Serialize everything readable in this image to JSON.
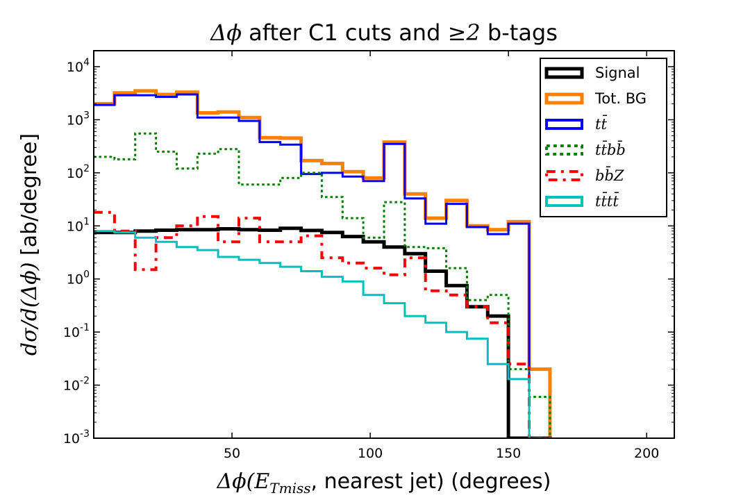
{
  "chart_data": {
    "type": "histogram-step",
    "title_prefix": "Δ",
    "title_var": "ϕ",
    "title_mid": " after C1 cuts and ",
    "title_math": "≥2",
    "title_suffix": " b-tags",
    "xlabel_prefix": "Δ",
    "xlabel_var": "ϕ(",
    "xlabel_e": "E",
    "xlabel_sub": "Tmiss",
    "xlabel_suffix": ", nearest jet) (degrees)",
    "ylabel_math": "dσ/d(Δϕ)",
    "ylabel_unit": " [ab/degree]",
    "xlim": [
      0,
      210
    ],
    "ylim": [
      0.001,
      20000
    ],
    "yscale": "log",
    "x_ticks": [
      50,
      100,
      150,
      200
    ],
    "x_tick_labels": [
      "50",
      "100",
      "150",
      "200"
    ],
    "y_ticks": [
      0.001,
      0.01,
      0.1,
      1,
      10,
      100,
      1000,
      10000
    ],
    "y_tick_labels": [
      {
        "base": "10",
        "exp": "-3"
      },
      {
        "base": "10",
        "exp": "-2"
      },
      {
        "base": "10",
        "exp": "-1"
      },
      {
        "base": "10",
        "exp": "0"
      },
      {
        "base": "10",
        "exp": "1"
      },
      {
        "base": "10",
        "exp": "2"
      },
      {
        "base": "10",
        "exp": "3"
      },
      {
        "base": "10",
        "exp": "4"
      }
    ],
    "bin_width": 7.5,
    "bin_start": 0,
    "series": [
      {
        "name": "Tot. BG",
        "color": "#ff8000",
        "style": "solid",
        "width": 5,
        "values": [
          2000,
          3200,
          3500,
          3000,
          3300,
          1350,
          1400,
          1100,
          460,
          450,
          170,
          150,
          105,
          80,
          380,
          40,
          14,
          30,
          10,
          8.5,
          12,
          0.02
        ]
      },
      {
        "name": "Signal",
        "color": "#000000",
        "style": "solid",
        "width": 5,
        "values": [
          7.5,
          7.5,
          8,
          8.3,
          8.5,
          8.5,
          8.8,
          8.5,
          8.3,
          9,
          8.2,
          7.5,
          6.3,
          5,
          4,
          3,
          1.4,
          0.75,
          0.3,
          0.2,
          0.001,
          0.001
        ]
      },
      {
        "name": "tt̄",
        "color": "#0000ff",
        "style": "solid",
        "width": 3,
        "values": [
          1900,
          2900,
          2900,
          2700,
          3000,
          1100,
          1100,
          950,
          380,
          340,
          95,
          100,
          85,
          70,
          350,
          33,
          11,
          26,
          9.5,
          7,
          11,
          0.001
        ]
      },
      {
        "name": "tt̄bb̄",
        "color": "#008000",
        "style": "dotted",
        "width": 3,
        "values": [
          200,
          180,
          550,
          250,
          120,
          230,
          280,
          60,
          60,
          80,
          100,
          35,
          14,
          6,
          28,
          4,
          3.8,
          1.6,
          0.4,
          0.5,
          0.02,
          0.006
        ]
      },
      {
        "name": "bb̄Z",
        "color": "#ff0000",
        "style": "dashdot",
        "width": 4,
        "values": [
          18,
          8,
          1.5,
          6,
          10,
          15,
          5,
          14,
          5,
          5,
          6.5,
          2.5,
          2,
          1.6,
          1.2,
          2.5,
          0.6,
          0.5,
          0.3,
          0.15,
          0.025,
          0.001
        ]
      },
      {
        "name": "tt̄tt̄",
        "color": "#00bfbf",
        "style": "solid",
        "width": 3,
        "values": [
          8,
          7.5,
          6,
          5,
          4,
          3.5,
          2.6,
          2.3,
          2,
          1.7,
          1.4,
          1.1,
          0.9,
          0.5,
          0.35,
          0.2,
          0.15,
          0.1,
          0.075,
          0.025,
          0.013,
          0.001
        ]
      }
    ],
    "legend": {
      "placement": "top-right",
      "entries": [
        {
          "label": "Signal",
          "color": "#000000",
          "style": "solid",
          "math": false
        },
        {
          "label": "Tot. BG",
          "color": "#ff8000",
          "style": "solid",
          "math": false
        },
        {
          "label": "tt̄",
          "color": "#0000ff",
          "style": "solid",
          "math": true
        },
        {
          "label": "tt̄bb̄",
          "color": "#008000",
          "style": "dotted",
          "math": true
        },
        {
          "label": "bb̄Z",
          "color": "#ff0000",
          "style": "dashdot",
          "math": true
        },
        {
          "label": "tt̄tt̄",
          "color": "#00bfbf",
          "style": "solid",
          "math": true
        }
      ]
    }
  }
}
